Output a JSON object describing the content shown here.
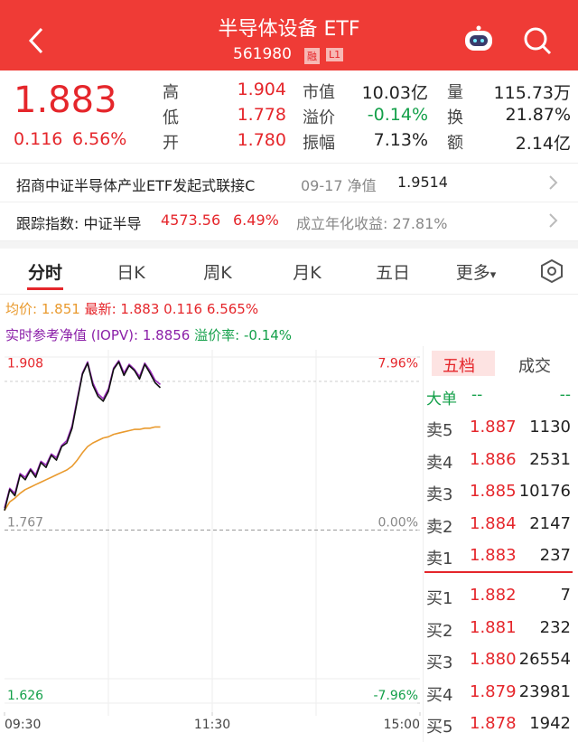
{
  "header": {
    "title": "半导体设备 ETF",
    "code": "561980",
    "badges": [
      "融",
      "L1"
    ]
  },
  "quote": {
    "price": "1.883",
    "change": "0.116",
    "change_pct": "6.56%",
    "stats": [
      [
        {
          "label": "高",
          "value": "1.904"
        },
        {
          "label": "市值",
          "value": "10.03亿"
        },
        {
          "label": "量",
          "value": "115.73万"
        }
      ],
      [
        {
          "label": "低",
          "value": "1.778"
        },
        {
          "label": "溢价",
          "value": "-0.14%"
        },
        {
          "label": "换",
          "value": "21.87%"
        }
      ],
      [
        {
          "label": "开",
          "value": "1.780"
        },
        {
          "label": "振幅",
          "value": "7.13%"
        },
        {
          "label": "额",
          "value": "2.14亿"
        }
      ]
    ]
  },
  "fund": {
    "name": "招商中证半导体产业ETF发起式联接C",
    "nav_label": "09-17 净值",
    "nav": "1.9514"
  },
  "index": {
    "label": "跟踪指数: 中证半导",
    "value": "4573.56",
    "change_pct": "6.49%",
    "annual": "成立年化收益: 27.81%"
  },
  "tabs": [
    "分时",
    "日K",
    "周K",
    "月K",
    "五日",
    "更多"
  ],
  "info": {
    "avg_label": "均价:",
    "avg": "1.851",
    "last_label": "最新:",
    "last": "1.883",
    "change": "0.116",
    "change_pct": "6.565%",
    "iopv_label": "实时参考净值 (IOPV):",
    "iopv": "1.8856",
    "premium_label": "溢价率:",
    "premium": "-0.14%"
  },
  "chart_data": {
    "type": "line",
    "x": [
      0,
      3,
      6,
      9,
      12,
      15,
      18,
      21,
      24,
      27,
      30,
      33,
      36,
      39,
      42,
      45,
      48,
      51,
      54,
      57,
      60,
      63,
      66,
      69,
      72,
      75,
      78,
      81,
      84,
      87,
      90
    ],
    "xlim": [
      0,
      240
    ],
    "xticks": [
      {
        "value": 0,
        "label": "09:30"
      },
      {
        "value": 120,
        "label": "11:30"
      },
      {
        "value": 240,
        "label": "15:00"
      }
    ],
    "ylim": [
      1.626,
      1.908
    ],
    "yticks": [
      1.908,
      1.767,
      1.626
    ],
    "y2lim": [
      -7.96,
      7.96
    ],
    "y2ticks": [
      {
        "value": 7.96,
        "label": "7.96%"
      },
      {
        "value": 0,
        "label": "0.00%"
      },
      {
        "value": -7.96,
        "label": "-7.96%"
      }
    ],
    "series": [
      {
        "color": "#e99a2e",
        "values": [
          1.783,
          1.79,
          1.793,
          1.797,
          1.8,
          1.802,
          1.804,
          1.806,
          1.808,
          1.81,
          1.812,
          1.814,
          1.816,
          1.819,
          1.824,
          1.83,
          1.835,
          1.838,
          1.84,
          1.842,
          1.843,
          1.845,
          1.846,
          1.847,
          1.848,
          1.849,
          1.849,
          1.85,
          1.85,
          1.851,
          1.851
        ]
      },
      {
        "color": "#9b2bbd",
        "values": [
          1.785,
          1.801,
          1.797,
          1.813,
          1.81,
          1.817,
          1.812,
          1.823,
          1.82,
          1.829,
          1.826,
          1.836,
          1.84,
          1.852,
          1.874,
          1.895,
          1.904,
          1.887,
          1.878,
          1.874,
          1.882,
          1.899,
          1.905,
          1.895,
          1.902,
          1.898,
          1.892,
          1.903,
          1.897,
          1.889,
          1.8856
        ]
      },
      {
        "color": "#111111",
        "values": [
          1.783,
          1.8,
          1.795,
          1.812,
          1.808,
          1.816,
          1.81,
          1.822,
          1.818,
          1.828,
          1.824,
          1.835,
          1.838,
          1.85,
          1.872,
          1.894,
          1.903,
          1.885,
          1.876,
          1.872,
          1.88,
          1.898,
          1.904,
          1.893,
          1.901,
          1.897,
          1.89,
          1.902,
          1.895,
          1.887,
          1.883
        ]
      }
    ]
  },
  "order_book": {
    "tabs": [
      "五档",
      "成交"
    ],
    "big_order": {
      "label": "大单",
      "buy": "--",
      "sell": "--"
    },
    "asks": [
      {
        "label": "卖5",
        "price": "1.887",
        "volume": "1130"
      },
      {
        "label": "卖4",
        "price": "1.886",
        "volume": "2531"
      },
      {
        "label": "卖3",
        "price": "1.885",
        "volume": "10176"
      },
      {
        "label": "卖2",
        "price": "1.884",
        "volume": "2147"
      },
      {
        "label": "卖1",
        "price": "1.883",
        "volume": "237"
      }
    ],
    "bids": [
      {
        "label": "买1",
        "price": "1.882",
        "volume": "7"
      },
      {
        "label": "买2",
        "price": "1.881",
        "volume": "232"
      },
      {
        "label": "买3",
        "price": "1.880",
        "volume": "26554"
      },
      {
        "label": "买4",
        "price": "1.879",
        "volume": "23981"
      },
      {
        "label": "买5",
        "price": "1.878",
        "volume": "1942"
      }
    ]
  }
}
